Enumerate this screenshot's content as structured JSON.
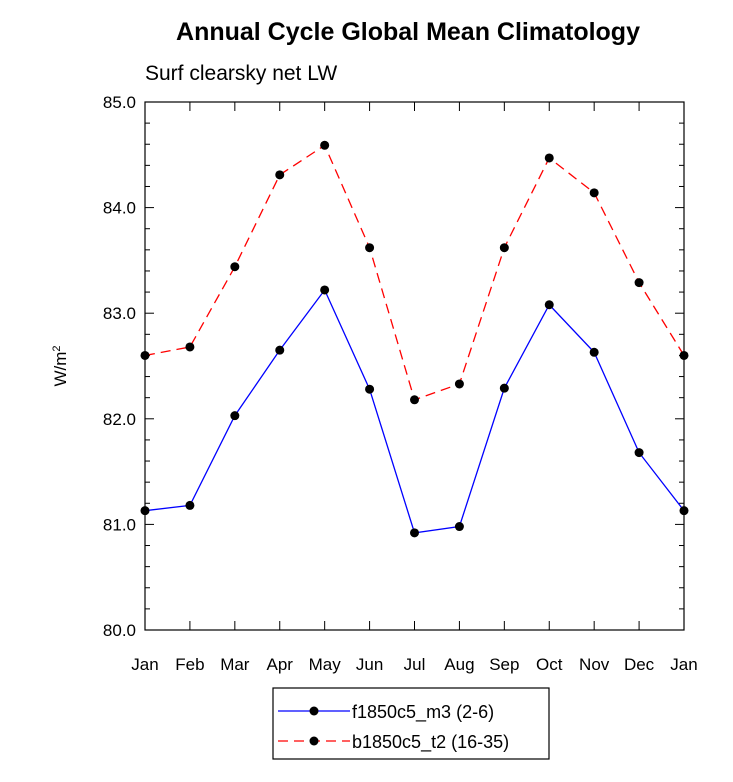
{
  "chart_data": {
    "type": "line",
    "title": "Annual Cycle Global Mean Climatology",
    "subtitle": "Surf clearsky net LW",
    "ylabel": "W/m",
    "ylabel_superscript": "2",
    "categories": [
      "Jan",
      "Feb",
      "Mar",
      "Apr",
      "May",
      "Jun",
      "Jul",
      "Aug",
      "Sep",
      "Oct",
      "Nov",
      "Dec",
      "Jan"
    ],
    "ylim": [
      80.0,
      85.0
    ],
    "yticks": [
      "80.0",
      "81.0",
      "82.0",
      "83.0",
      "84.0",
      "85.0"
    ],
    "series": [
      {
        "name": "f1850c5_m3 (2-6)",
        "color": "#0000ff",
        "dash": "solid",
        "values": [
          81.13,
          81.18,
          82.03,
          82.65,
          83.22,
          82.28,
          80.92,
          80.98,
          82.29,
          83.08,
          82.63,
          81.68,
          81.13
        ]
      },
      {
        "name": "b1850c5_t2 (16-35)",
        "color": "#ff0000",
        "dash": "dashed",
        "values": [
          82.6,
          82.68,
          83.44,
          84.31,
          84.59,
          83.62,
          82.18,
          82.33,
          83.62,
          84.47,
          84.14,
          83.29,
          82.6
        ]
      }
    ],
    "legend_position": "bottom-center"
  }
}
